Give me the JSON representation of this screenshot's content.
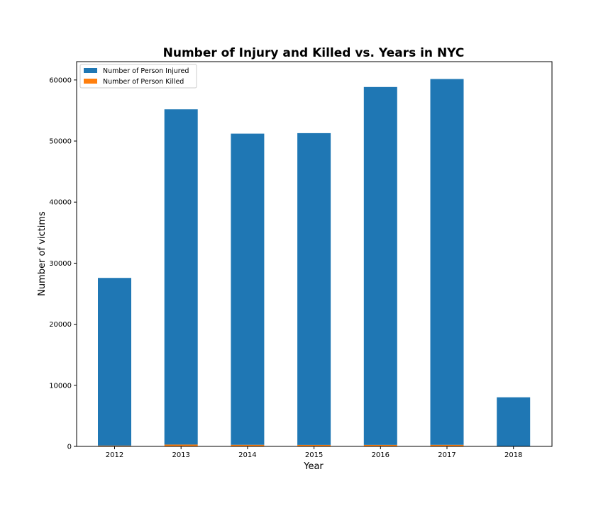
{
  "chart_data": {
    "type": "bar",
    "stacked": true,
    "title": "Number of Injury and Killed vs. Years in NYC",
    "xlabel": "Year",
    "ylabel": "Number of victims",
    "categories": [
      "2012",
      "2013",
      "2014",
      "2015",
      "2016",
      "2017",
      "2018"
    ],
    "series": [
      {
        "name": "Number of Person Killed",
        "color": "#ff7f0e",
        "values": [
          137,
          297,
          262,
          243,
          246,
          256,
          40
        ]
      },
      {
        "name": "Number of Person Injured",
        "color": "#1f77b4",
        "values": [
          27450,
          54900,
          50950,
          51050,
          58600,
          59900,
          8000
        ]
      }
    ],
    "legend_order": [
      "Number of Person Injured",
      "Number of Person Killed"
    ],
    "ylim": [
      0,
      63000
    ],
    "yticks": [
      0,
      10000,
      20000,
      30000,
      40000,
      50000,
      60000
    ],
    "grid": false,
    "legend_position": "top-left"
  }
}
